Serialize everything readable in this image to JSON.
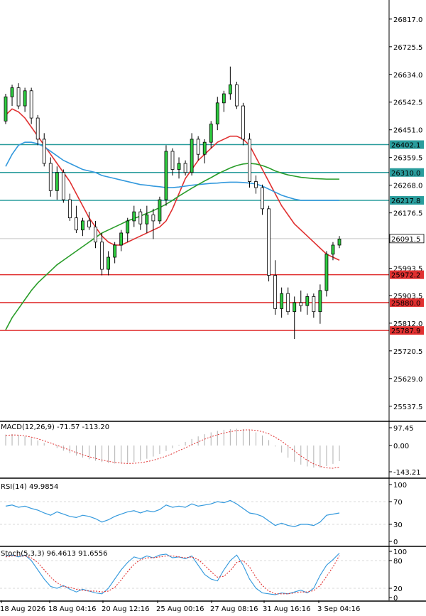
{
  "chart_data": [
    {
      "type": "candlestick",
      "panel": "price",
      "price_ticks": [
        "26817.0",
        "26725.5",
        "26634.0",
        "26542.5",
        "26451.0",
        "26359.5",
        "26268.0",
        "26176.5",
        "25993.5",
        "25903.5",
        "25812.0",
        "25720.5",
        "25629.0",
        "25537.5"
      ],
      "ylim": [
        25490,
        26880
      ],
      "horizontal_levels": [
        {
          "value": 26402.1,
          "label": "26402.1",
          "color": "#2a9d9d"
        },
        {
          "value": 26310.0,
          "label": "26310.0",
          "color": "#2a9d9d"
        },
        {
          "value": 26217.8,
          "label": "26217.8",
          "color": "#2a9d9d"
        },
        {
          "value": 25972.2,
          "label": "25972.2",
          "color": "#e03030"
        },
        {
          "value": 25880.0,
          "label": "25880.0",
          "color": "#e03030"
        },
        {
          "value": 25787.9,
          "label": "25787.9",
          "color": "#e03030"
        }
      ],
      "current_price": {
        "value": 26091.5,
        "label": "26091.5"
      },
      "candles": [
        [
          26480,
          26570,
          26470,
          26560
        ],
        [
          26560,
          26600,
          26530,
          26590
        ],
        [
          26590,
          26605,
          26520,
          26530
        ],
        [
          26530,
          26590,
          26510,
          26580
        ],
        [
          26580,
          26590,
          26470,
          26490
        ],
        [
          26490,
          26500,
          26400,
          26420
        ],
        [
          26420,
          26440,
          26330,
          26340
        ],
        [
          26340,
          26360,
          26230,
          26250
        ],
        [
          26250,
          26330,
          26220,
          26310
        ],
        [
          26310,
          26320,
          26210,
          26220
        ],
        [
          26220,
          26240,
          26150,
          26160
        ],
        [
          26160,
          26200,
          26110,
          26120
        ],
        [
          26120,
          26160,
          26100,
          26150
        ],
        [
          26150,
          26180,
          26120,
          26130
        ],
        [
          26130,
          26150,
          26060,
          26080
        ],
        [
          26080,
          26110,
          25970,
          25990
        ],
        [
          25990,
          26050,
          25970,
          26030
        ],
        [
          26030,
          26080,
          26010,
          26070
        ],
        [
          26070,
          26120,
          26050,
          26110
        ],
        [
          26110,
          26160,
          26080,
          26150
        ],
        [
          26150,
          26200,
          26130,
          26180
        ],
        [
          26180,
          26190,
          26120,
          26140
        ],
        [
          26140,
          26200,
          26110,
          26170
        ],
        [
          26170,
          26190,
          26090,
          26150
        ],
        [
          26150,
          26230,
          26140,
          26220
        ],
        [
          26220,
          26400,
          26200,
          26380
        ],
        [
          26380,
          26390,
          26300,
          26320
        ],
        [
          26320,
          26360,
          26290,
          26340
        ],
        [
          26340,
          26350,
          26300,
          26310
        ],
        [
          26310,
          26440,
          26300,
          26420
        ],
        [
          26420,
          26430,
          26350,
          26370
        ],
        [
          26370,
          26420,
          26340,
          26410
        ],
        [
          26410,
          26480,
          26390,
          26470
        ],
        [
          26470,
          26560,
          26450,
          26540
        ],
        [
          26540,
          26580,
          26510,
          26570
        ],
        [
          26570,
          26660,
          26550,
          26600
        ],
        [
          26600,
          26610,
          26520,
          26530
        ],
        [
          26530,
          26540,
          26400,
          26420
        ],
        [
          26420,
          26440,
          26260,
          26280
        ],
        [
          26280,
          26300,
          26240,
          26260
        ],
        [
          26260,
          26270,
          26170,
          26190
        ],
        [
          26190,
          26200,
          25950,
          25970
        ],
        [
          25970,
          26020,
          25840,
          25860
        ],
        [
          25860,
          25930,
          25830,
          25910
        ],
        [
          25910,
          25930,
          25840,
          25850
        ],
        [
          25850,
          25900,
          25760,
          25880
        ],
        [
          25880,
          25920,
          25850,
          25870
        ],
        [
          25870,
          25910,
          25840,
          25900
        ],
        [
          25900,
          25910,
          25830,
          25850
        ],
        [
          25850,
          25940,
          25810,
          25920
        ],
        [
          25920,
          26050,
          25900,
          26040
        ],
        [
          26040,
          26080,
          26020,
          26070
        ],
        [
          26070,
          26100,
          26060,
          26090
        ]
      ],
      "series": [
        {
          "name": "",
          "color": "#e03030",
          "values": [
            26500,
            26520,
            26510,
            26490,
            26460,
            26430,
            26400,
            26370,
            26340,
            26310,
            26280,
            26240,
            26200,
            26160,
            26130,
            26100,
            26080,
            26070,
            26070,
            26080,
            26090,
            26100,
            26110,
            26120,
            26130,
            26150,
            26190,
            26240,
            26290,
            26320,
            26350,
            26370,
            26390,
            26410,
            26420,
            26430,
            26430,
            26420,
            26400,
            26360,
            26320,
            26280,
            26240,
            26200,
            26170,
            26140,
            26120,
            26100,
            26080,
            26060,
            26040,
            26030,
            26020
          ]
        },
        {
          "name": "",
          "color": "#3399dd",
          "values": [
            26330,
            26370,
            26400,
            26410,
            26410,
            26405,
            26395,
            26380,
            26365,
            26350,
            26340,
            26330,
            26320,
            26315,
            26310,
            26300,
            26295,
            26290,
            26285,
            26280,
            26275,
            26270,
            26268,
            26265,
            26263,
            26260,
            26260,
            26262,
            26265,
            26268,
            26270,
            26272,
            26274,
            26275,
            26277,
            26278,
            26278,
            26277,
            26275,
            26272,
            26265,
            26255,
            26245,
            26235,
            26228,
            26222,
            26218,
            26218,
            26218,
            26218,
            26218,
            26218,
            26218
          ]
        },
        {
          "name": "",
          "color": "#2a9d2a",
          "values": [
            25790,
            25830,
            25860,
            25890,
            25920,
            25945,
            25965,
            25985,
            26005,
            26020,
            26035,
            26050,
            26065,
            26080,
            26095,
            26110,
            26120,
            26130,
            26140,
            26150,
            26158,
            26166,
            26175,
            26184,
            26194,
            26205,
            26218,
            26232,
            26245,
            26258,
            26270,
            26282,
            26293,
            26305,
            26315,
            26325,
            26333,
            26338,
            26340,
            26338,
            26333,
            26325,
            26315,
            26308,
            26302,
            26298,
            26294,
            26292,
            26290,
            26289,
            26288,
            26288,
            26288
          ]
        }
      ],
      "x_ticks": [
        "18 Aug 2026",
        "18 Aug 04:16",
        "20 Aug 12:16",
        "25 Aug 00:16",
        "27 Aug 08:16",
        "31 Aug 16:16",
        "3 Sep 04:16"
      ]
    },
    {
      "type": "bar",
      "panel": "macd",
      "title": "MACD(12,26,9) -71.57 -113.20",
      "y_ticks": [
        "97.45",
        "0.00",
        "-143.21"
      ],
      "ylim": [
        -143.21,
        97.45
      ],
      "histogram": [
        60,
        62,
        58,
        50,
        40,
        28,
        14,
        0,
        -14,
        -28,
        -42,
        -55,
        -66,
        -75,
        -83,
        -90,
        -95,
        -98,
        -98,
        -95,
        -90,
        -82,
        -72,
        -60,
        -46,
        -30,
        -14,
        4,
        20,
        36,
        50,
        62,
        72,
        80,
        86,
        90,
        92,
        90,
        84,
        72,
        55,
        30,
        -5,
        -38,
        -66,
        -88,
        -104,
        -114,
        -120,
        -120,
        -112,
        -100,
        -85
      ],
      "signal": [
        55,
        58,
        57,
        53,
        46,
        37,
        26,
        14,
        1,
        -12,
        -25,
        -38,
        -50,
        -61,
        -70,
        -79,
        -86,
        -92,
        -96,
        -98,
        -97,
        -94,
        -88,
        -80,
        -70,
        -58,
        -44,
        -28,
        -12,
        4,
        20,
        35,
        48,
        59,
        68,
        76,
        82,
        85,
        86,
        83,
        76,
        64,
        46,
        24,
        -2,
        -30,
        -57,
        -80,
        -100,
        -114,
        -122,
        -124,
        -118
      ]
    },
    {
      "type": "line",
      "panel": "rsi",
      "title": "RSI(14) 49.9854",
      "y_ticks": [
        "100",
        "70",
        "30",
        "0"
      ],
      "ylim": [
        0,
        100
      ],
      "series": [
        {
          "name": "",
          "color": "#3399dd",
          "values": [
            62,
            64,
            60,
            62,
            58,
            55,
            50,
            46,
            52,
            48,
            44,
            42,
            46,
            44,
            40,
            34,
            38,
            44,
            48,
            52,
            54,
            50,
            54,
            52,
            56,
            64,
            60,
            62,
            60,
            66,
            62,
            64,
            66,
            70,
            68,
            72,
            66,
            58,
            50,
            48,
            44,
            36,
            28,
            32,
            28,
            26,
            30,
            30,
            28,
            34,
            46,
            48,
            50
          ]
        }
      ]
    },
    {
      "type": "line",
      "panel": "stoch",
      "title": "Stoch(5,3,3) 96.4613 91.6556",
      "y_ticks": [
        "100",
        "80",
        "20",
        "0"
      ],
      "ylim": [
        0,
        100
      ],
      "series": [
        {
          "name": "",
          "color": "#3399dd",
          "values": [
            90,
            92,
            88,
            92,
            80,
            60,
            40,
            24,
            20,
            26,
            18,
            12,
            18,
            14,
            10,
            8,
            20,
            40,
            60,
            76,
            88,
            84,
            90,
            86,
            92,
            94,
            86,
            88,
            84,
            90,
            70,
            50,
            40,
            36,
            60,
            80,
            92,
            70,
            40,
            20,
            10,
            8,
            6,
            10,
            8,
            12,
            16,
            10,
            20,
            48,
            70,
            82,
            96
          ]
        },
        {
          "name": "",
          "color": "#e03030",
          "values": [
            88,
            90,
            90,
            90,
            86,
            76,
            60,
            44,
            32,
            24,
            22,
            18,
            16,
            14,
            14,
            12,
            14,
            22,
            38,
            56,
            72,
            82,
            86,
            86,
            88,
            90,
            90,
            88,
            86,
            88,
            82,
            70,
            56,
            44,
            46,
            58,
            76,
            80,
            66,
            44,
            26,
            14,
            8,
            8,
            8,
            10,
            12,
            12,
            15,
            26,
            46,
            66,
            91
          ]
        }
      ]
    }
  ]
}
